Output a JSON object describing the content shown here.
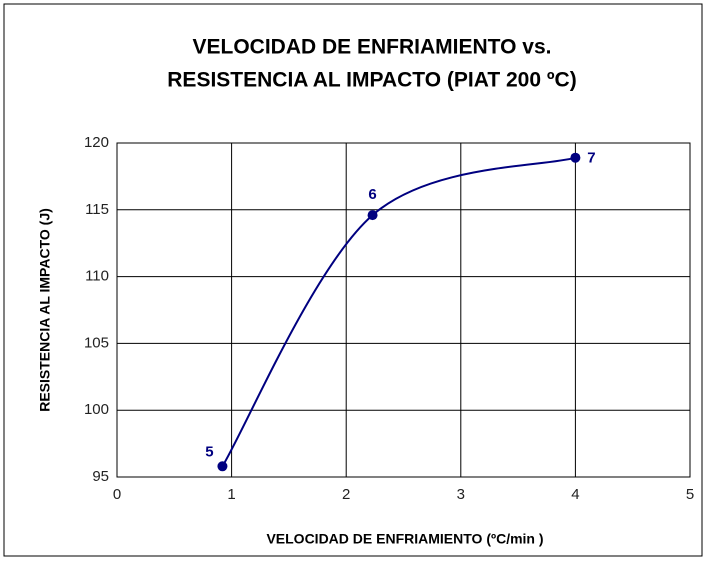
{
  "chart_data": {
    "type": "line",
    "title": [
      "VELOCIDAD DE ENFRIAMIENTO  vs.",
      "RESISTENCIA AL IMPACTO (PIAT 200 ºC)"
    ],
    "xlabel": "VELOCIDAD DE ENFRIAMIENTO (ºC/min )",
    "ylabel": "RESISTENCIA AL IMPACTO (J)",
    "x": [
      0.92,
      2.23,
      4.0
    ],
    "series": [
      {
        "color": "#000080",
        "values": [
          95.8,
          114.6,
          118.9
        ],
        "point_labels": [
          "5",
          "6",
          "7"
        ]
      }
    ],
    "smooth": true,
    "xlim": [
      0,
      5
    ],
    "xticks": [
      0,
      1,
      2,
      3,
      4,
      5
    ],
    "ylim": [
      95,
      120
    ],
    "yticks": [
      95,
      100,
      105,
      110,
      115,
      120
    ],
    "grid": true
  }
}
